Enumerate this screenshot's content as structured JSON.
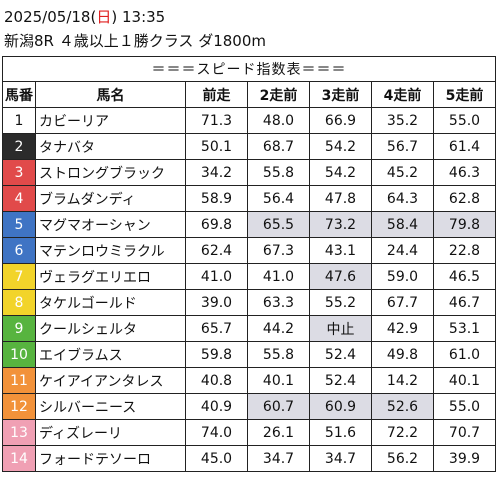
{
  "header": {
    "date": "2025/05/18",
    "weekday_open": "(",
    "weekday": "日",
    "weekday_close": ")",
    "time": "13:35",
    "race": "新潟8R ４歳以上１勝クラス ダ1800m"
  },
  "table": {
    "title": "＝＝＝スピード指数表＝＝＝",
    "columns": [
      "馬番",
      "馬名",
      "前走",
      "2走前",
      "3走前",
      "4走前",
      "5走前"
    ],
    "rows": [
      {
        "num": "1",
        "name": "カビーリア",
        "v": [
          "71.3",
          "48.0",
          "66.9",
          "35.2",
          "55.0"
        ],
        "hl": [
          false,
          false,
          false,
          false,
          false
        ],
        "color": "c1"
      },
      {
        "num": "2",
        "name": "タナバタ",
        "v": [
          "50.1",
          "68.7",
          "54.2",
          "56.7",
          "61.4"
        ],
        "hl": [
          false,
          false,
          false,
          false,
          false
        ],
        "color": "c2"
      },
      {
        "num": "3",
        "name": "ストロングブラック",
        "v": [
          "34.2",
          "55.8",
          "54.2",
          "45.2",
          "46.3"
        ],
        "hl": [
          false,
          false,
          false,
          false,
          false
        ],
        "color": "c3"
      },
      {
        "num": "4",
        "name": "ブラムダンディ",
        "v": [
          "58.9",
          "56.4",
          "47.8",
          "64.3",
          "62.8"
        ],
        "hl": [
          false,
          false,
          false,
          false,
          false
        ],
        "color": "c3"
      },
      {
        "num": "5",
        "name": "マグマオーシャン",
        "v": [
          "69.8",
          "65.5",
          "73.2",
          "58.4",
          "79.8"
        ],
        "hl": [
          false,
          true,
          true,
          true,
          true
        ],
        "color": "c4"
      },
      {
        "num": "6",
        "name": "マテンロウミラクル",
        "v": [
          "62.4",
          "67.3",
          "43.1",
          "24.4",
          "22.8"
        ],
        "hl": [
          false,
          false,
          false,
          false,
          false
        ],
        "color": "c4"
      },
      {
        "num": "7",
        "name": "ヴェラグエリエロ",
        "v": [
          "41.0",
          "41.0",
          "47.6",
          "59.0",
          "46.5"
        ],
        "hl": [
          false,
          false,
          true,
          false,
          false
        ],
        "color": "c5"
      },
      {
        "num": "8",
        "name": "タケルゴールド",
        "v": [
          "39.0",
          "63.3",
          "55.2",
          "67.7",
          "46.7"
        ],
        "hl": [
          false,
          false,
          false,
          false,
          false
        ],
        "color": "c5"
      },
      {
        "num": "9",
        "name": "クールシェルタ",
        "v": [
          "65.7",
          "44.2",
          "中止",
          "42.9",
          "53.1"
        ],
        "hl": [
          false,
          false,
          true,
          false,
          false
        ],
        "color": "c6"
      },
      {
        "num": "10",
        "name": "エイブラムス",
        "v": [
          "59.8",
          "55.8",
          "52.4",
          "49.8",
          "61.0"
        ],
        "hl": [
          false,
          false,
          false,
          false,
          false
        ],
        "color": "c6"
      },
      {
        "num": "11",
        "name": "ケイアイアンタレス",
        "v": [
          "40.8",
          "40.1",
          "52.4",
          "14.2",
          "40.1"
        ],
        "hl": [
          false,
          false,
          false,
          false,
          false
        ],
        "color": "c7"
      },
      {
        "num": "12",
        "name": "シルバーニース",
        "v": [
          "40.9",
          "60.7",
          "60.9",
          "52.6",
          "55.0"
        ],
        "hl": [
          false,
          true,
          true,
          true,
          false
        ],
        "color": "c7"
      },
      {
        "num": "13",
        "name": "ディズレーリ",
        "v": [
          "74.0",
          "26.1",
          "51.6",
          "72.2",
          "70.7"
        ],
        "hl": [
          false,
          false,
          false,
          false,
          false
        ],
        "color": "c8"
      },
      {
        "num": "14",
        "name": "フォードテソーロ",
        "v": [
          "45.0",
          "34.7",
          "34.7",
          "56.2",
          "39.9"
        ],
        "hl": [
          false,
          false,
          false,
          false,
          false
        ],
        "color": "c8"
      }
    ]
  }
}
